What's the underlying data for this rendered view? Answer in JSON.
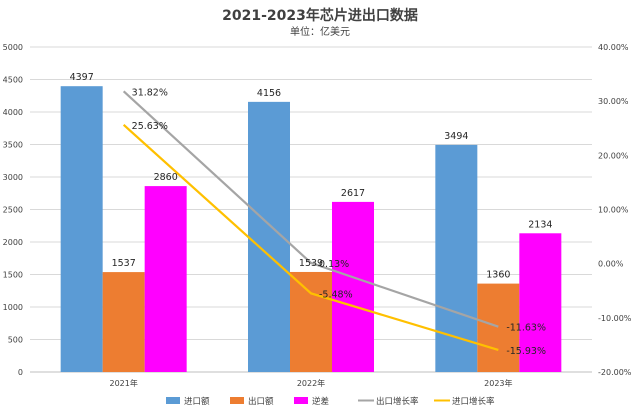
{
  "chart_data": {
    "type": "bar",
    "title": "2021-2023年芯片进出口数据",
    "subtitle": "单位：亿美元",
    "categories": [
      "2021年",
      "2022年",
      "2023年"
    ],
    "series": [
      {
        "name": "进口额",
        "kind": "bar",
        "axis": "left",
        "color": "#5B9BD5",
        "values": [
          4397,
          4156,
          3494
        ],
        "labels": [
          "4397",
          "4156",
          "3494"
        ]
      },
      {
        "name": "出口额",
        "kind": "bar",
        "axis": "left",
        "color": "#ED7D31",
        "values": [
          1537,
          1539,
          1360
        ],
        "labels": [
          "1537",
          "1539",
          "1360"
        ]
      },
      {
        "name": "逆差",
        "kind": "bar",
        "axis": "left",
        "color": "#FF00FF",
        "values": [
          2860,
          2617,
          2134
        ],
        "labels": [
          "2860",
          "2617",
          "2134"
        ]
      },
      {
        "name": "出口增长率",
        "kind": "line",
        "axis": "right",
        "color": "#A5A5A5",
        "values": [
          31.82,
          0.13,
          -11.63
        ],
        "labels": [
          "31.82%",
          "0.13%",
          "-11.63%"
        ]
      },
      {
        "name": "进口增长率",
        "kind": "line",
        "axis": "right",
        "color": "#FFC000",
        "values": [
          25.63,
          -5.48,
          -15.93
        ],
        "labels": [
          "25.63%",
          "-5.48%",
          "-15.93%"
        ]
      }
    ],
    "y_left": {
      "ylim": [
        0,
        5000
      ],
      "ticks": [
        "0",
        "500",
        "1000",
        "1500",
        "2000",
        "2500",
        "3000",
        "3500",
        "4000",
        "4500",
        "5000"
      ]
    },
    "y_right": {
      "ylim": [
        -20,
        40
      ],
      "ticks": [
        "-20.00%",
        "-10.00%",
        "0.00%",
        "10.00%",
        "20.00%",
        "30.00%",
        "40.00%"
      ]
    },
    "grid": true,
    "legend_position": "bottom"
  }
}
